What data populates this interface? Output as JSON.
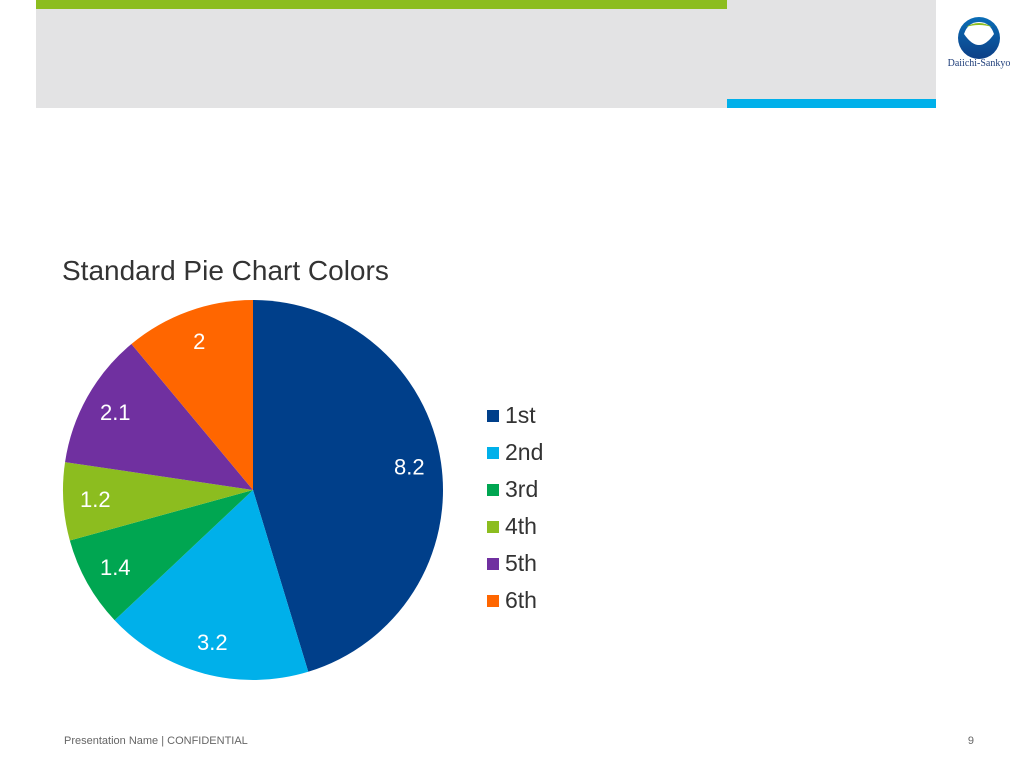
{
  "header": {
    "accent_green": "#8cbd1f",
    "accent_blue": "#00b0ea",
    "logo_text": "Daiichi-Sankyo",
    "logo_blue": "#0a6db6"
  },
  "chart_data": {
    "type": "pie",
    "title": "Standard Pie Chart Colors",
    "start_angle": "12 o'clock",
    "direction": "clockwise",
    "legend_position": "right",
    "slices": [
      {
        "name": "1st",
        "value": 8.2,
        "label": "8.2",
        "color": "#003f8a"
      },
      {
        "name": "2nd",
        "value": 3.2,
        "label": "3.2",
        "color": "#00b0ea"
      },
      {
        "name": "3rd",
        "value": 1.4,
        "label": "1.4",
        "color": "#00a651"
      },
      {
        "name": "4th",
        "value": 1.2,
        "label": "1.2",
        "color": "#8cbd1f"
      },
      {
        "name": "5th",
        "value": 2.1,
        "label": "2.1",
        "color": "#7030a0"
      },
      {
        "name": "6th",
        "value": 2,
        "label": "2",
        "color": "#ff6600"
      }
    ]
  },
  "footer": {
    "text": "Presentation Name | CONFIDENTIAL",
    "page_number": "9"
  }
}
